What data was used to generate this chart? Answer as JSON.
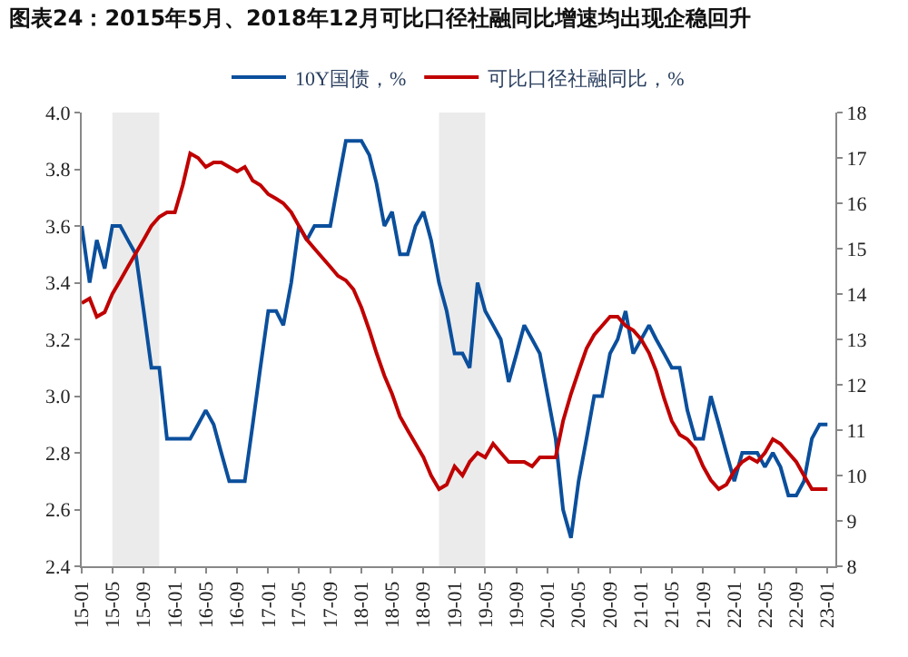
{
  "chart_data": {
    "type": "line",
    "title": "图表24：2015年5月、2018年12月可比口径社融同比增速均出现企稳回升",
    "x": [
      "2015-01",
      "2015-02",
      "2015-03",
      "2015-04",
      "2015-05",
      "2015-06",
      "2015-07",
      "2015-08",
      "2015-09",
      "2015-10",
      "2015-11",
      "2015-12",
      "2016-01",
      "2016-02",
      "2016-03",
      "2016-04",
      "2016-05",
      "2016-06",
      "2016-07",
      "2016-08",
      "2016-09",
      "2016-10",
      "2016-11",
      "2016-12",
      "2017-01",
      "2017-02",
      "2017-03",
      "2017-04",
      "2017-05",
      "2017-06",
      "2017-07",
      "2017-08",
      "2017-09",
      "2017-10",
      "2017-11",
      "2017-12",
      "2018-01",
      "2018-02",
      "2018-03",
      "2018-04",
      "2018-05",
      "2018-06",
      "2018-07",
      "2018-08",
      "2018-09",
      "2018-10",
      "2018-11",
      "2018-12",
      "2019-01",
      "2019-02",
      "2019-03",
      "2019-04",
      "2019-05",
      "2019-06",
      "2019-07",
      "2019-08",
      "2019-09",
      "2019-10",
      "2019-11",
      "2019-12",
      "2020-01",
      "2020-02",
      "2020-03",
      "2020-04",
      "2020-05",
      "2020-06",
      "2020-07",
      "2020-08",
      "2020-09",
      "2020-10",
      "2020-11",
      "2020-12",
      "2021-01",
      "2021-02",
      "2021-03",
      "2021-04",
      "2021-05",
      "2021-06",
      "2021-07",
      "2021-08",
      "2021-09",
      "2021-10",
      "2021-11",
      "2021-12",
      "2022-01",
      "2022-02",
      "2022-03",
      "2022-04",
      "2022-05",
      "2022-06",
      "2022-07",
      "2022-08",
      "2022-09",
      "2022-10",
      "2022-11",
      "2022-12",
      "2023-01"
    ],
    "series": [
      {
        "name": "10Y国债，%",
        "color": "#0b4f9c",
        "values": [
          3.6,
          3.4,
          3.55,
          3.45,
          3.6,
          3.6,
          3.55,
          3.5,
          3.3,
          3.1,
          3.1,
          2.85,
          2.85,
          2.85,
          2.85,
          2.9,
          2.95,
          2.9,
          2.8,
          2.7,
          2.7,
          2.7,
          2.9,
          3.1,
          3.3,
          3.3,
          3.25,
          3.4,
          3.6,
          3.55,
          3.6,
          3.6,
          3.6,
          3.75,
          3.9,
          3.9,
          3.9,
          3.85,
          3.75,
          3.6,
          3.65,
          3.5,
          3.5,
          3.6,
          3.65,
          3.55,
          3.4,
          3.3,
          3.15,
          3.15,
          3.1,
          3.4,
          3.3,
          3.25,
          3.2,
          3.05,
          3.15,
          3.25,
          3.2,
          3.15,
          3.0,
          2.85,
          2.6,
          2.5,
          2.7,
          2.85,
          3.0,
          3.0,
          3.15,
          3.2,
          3.3,
          3.15,
          3.2,
          3.25,
          3.2,
          3.15,
          3.1,
          3.1,
          2.95,
          2.85,
          2.85,
          3.0,
          2.9,
          2.8,
          2.7,
          2.8,
          2.8,
          2.8,
          2.75,
          2.8,
          2.75,
          2.65,
          2.65,
          2.7,
          2.85,
          2.9,
          2.9
        ]
      },
      {
        "name": "可比口径社融同比，%",
        "color": "#c00000",
        "axis": "y2",
        "values": [
          13.8,
          13.9,
          13.5,
          13.6,
          14.0,
          14.3,
          14.6,
          14.9,
          15.2,
          15.5,
          15.7,
          15.8,
          15.8,
          16.4,
          17.1,
          17.0,
          16.8,
          16.9,
          16.9,
          16.8,
          16.7,
          16.8,
          16.5,
          16.4,
          16.2,
          16.1,
          16.0,
          15.8,
          15.5,
          15.2,
          15.0,
          14.8,
          14.6,
          14.4,
          14.3,
          14.1,
          13.7,
          13.2,
          12.7,
          12.2,
          11.8,
          11.3,
          11.0,
          10.7,
          10.4,
          10.0,
          9.7,
          9.8,
          10.2,
          10.0,
          10.3,
          10.5,
          10.4,
          10.7,
          10.5,
          10.3,
          10.3,
          10.3,
          10.2,
          10.4,
          10.4,
          10.4,
          11.2,
          11.8,
          12.3,
          12.8,
          13.1,
          13.3,
          13.5,
          13.5,
          13.3,
          13.2,
          13.0,
          12.7,
          12.3,
          11.7,
          11.2,
          10.9,
          10.8,
          10.6,
          10.2,
          9.9,
          9.7,
          9.8,
          10.1,
          10.3,
          10.4,
          10.3,
          10.5,
          10.8,
          10.7,
          10.5,
          10.3,
          10.0,
          9.7,
          9.7,
          9.7
        ]
      }
    ],
    "xlim": [
      "2015-01",
      "2023-02"
    ],
    "xticks": [
      {
        "value": "2015-01",
        "label": "15-01"
      },
      {
        "value": "2015-05",
        "label": "15-05"
      },
      {
        "value": "2015-09",
        "label": "15-09"
      },
      {
        "value": "2016-01",
        "label": "16-01"
      },
      {
        "value": "2016-05",
        "label": "16-05"
      },
      {
        "value": "2016-09",
        "label": "16-09"
      },
      {
        "value": "2017-01",
        "label": "17-01"
      },
      {
        "value": "2017-05",
        "label": "17-05"
      },
      {
        "value": "2017-09",
        "label": "17-09"
      },
      {
        "value": "2018-01",
        "label": "18-01"
      },
      {
        "value": "2018-05",
        "label": "18-05"
      },
      {
        "value": "2018-09",
        "label": "18-09"
      },
      {
        "value": "2019-01",
        "label": "19-01"
      },
      {
        "value": "2019-05",
        "label": "19-05"
      },
      {
        "value": "2019-09",
        "label": "19-09"
      },
      {
        "value": "2020-01",
        "label": "20-01"
      },
      {
        "value": "2020-05",
        "label": "20-05"
      },
      {
        "value": "2020-09",
        "label": "20-09"
      },
      {
        "value": "2021-01",
        "label": "21-01"
      },
      {
        "value": "2021-05",
        "label": "21-05"
      },
      {
        "value": "2021-09",
        "label": "21-09"
      },
      {
        "value": "2022-01",
        "label": "22-01"
      },
      {
        "value": "2022-05",
        "label": "22-05"
      },
      {
        "value": "2022-09",
        "label": "22-09"
      },
      {
        "value": "2023-01",
        "label": "23-01"
      }
    ],
    "ylim": [
      2.4,
      4.0
    ],
    "yticks": [
      2.4,
      2.6,
      2.8,
      {
        "value": 3,
        "label": "3.0"
      },
      3.2,
      3.4,
      3.6,
      3.8,
      {
        "value": 4,
        "label": "4.0"
      }
    ],
    "y2lim": [
      8,
      18
    ],
    "y2ticks": [
      8,
      9,
      10,
      11,
      12,
      13,
      14,
      15,
      16,
      17,
      18
    ],
    "bands": [
      {
        "axis": "x",
        "from": "2015-05",
        "to": "2015-11",
        "color": "#ebebeb"
      },
      {
        "axis": "x",
        "from": "2018-11",
        "to": "2019-05",
        "color": "#ebebeb"
      }
    ],
    "grid": false,
    "legend": "top",
    "line_style": "solid",
    "marker": "none"
  }
}
